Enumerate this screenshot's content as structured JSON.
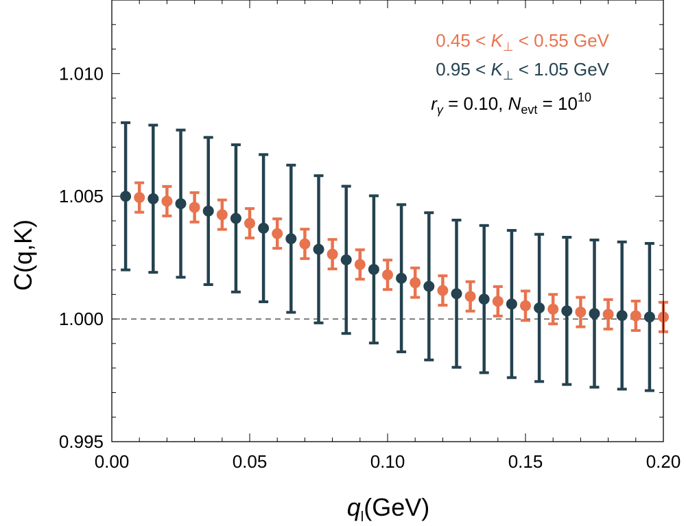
{
  "chart_data": {
    "type": "scatter",
    "xlabel": {
      "main": "q",
      "sub": "l",
      "unit": "(GeV)"
    },
    "ylabel": "C(q,K)",
    "xlim": [
      0.0,
      0.2
    ],
    "ylim": [
      0.995,
      1.013
    ],
    "x_ticks": [
      "0.00",
      "0.05",
      "0.10",
      "0.15",
      "0.20"
    ],
    "y_ticks": [
      "0.995",
      "1.000",
      "1.005",
      "1.010"
    ],
    "reference_line": 1.0,
    "grid": false,
    "legend_position": "top-right",
    "series": [
      {
        "name": "0.45 < K⊥ < 0.55 GeV",
        "label_parts": {
          "pre": "0.45 < ",
          "var": "K",
          "sub": "⊥",
          "post": " < 0.55 GeV"
        },
        "color": "#E8734F",
        "x": [
          0.01,
          0.02,
          0.03,
          0.04,
          0.05,
          0.06,
          0.07,
          0.08,
          0.09,
          0.1,
          0.11,
          0.12,
          0.13,
          0.14,
          0.15,
          0.16,
          0.17,
          0.18,
          0.19,
          0.2
        ],
        "y": [
          1.00495,
          1.0048,
          1.00455,
          1.00425,
          1.0039,
          1.00348,
          1.00306,
          1.00264,
          1.00222,
          1.0018,
          1.00148,
          1.00116,
          1.00092,
          1.00072,
          1.00054,
          1.0004,
          1.00028,
          1.00019,
          1.00013,
          1.00008
        ],
        "err": [
          0.0006,
          0.0006,
          0.0006,
          0.0006,
          0.0006,
          0.0006,
          0.0006,
          0.0006,
          0.0006,
          0.0006,
          0.0006,
          0.0006,
          0.0006,
          0.0006,
          0.0006,
          0.0006,
          0.0006,
          0.0006,
          0.0006,
          0.0006
        ]
      },
      {
        "name": "0.95 < K⊥ < 1.05 GeV",
        "label_parts": {
          "pre": "0.95 < ",
          "var": "K",
          "sub": "⊥",
          "post": " < 1.05 GeV"
        },
        "color": "#24424F",
        "x": [
          0.005,
          0.015,
          0.025,
          0.035,
          0.045,
          0.055,
          0.065,
          0.075,
          0.085,
          0.095,
          0.105,
          0.115,
          0.125,
          0.135,
          0.145,
          0.155,
          0.165,
          0.175,
          0.185,
          0.195
        ],
        "y": [
          1.005,
          1.0049,
          1.0047,
          1.0044,
          1.0041,
          1.0037,
          1.00327,
          1.00284,
          1.00241,
          1.00202,
          1.00166,
          1.00133,
          1.00103,
          1.00081,
          1.00061,
          1.00045,
          1.00033,
          1.00022,
          1.00014,
          1.00008
        ],
        "err": [
          0.003,
          0.003,
          0.003,
          0.003,
          0.003,
          0.003,
          0.003,
          0.003,
          0.003,
          0.003,
          0.003,
          0.003,
          0.003,
          0.003,
          0.003,
          0.003,
          0.003,
          0.003,
          0.003,
          0.003
        ]
      }
    ],
    "annotation": {
      "r_sym": "r",
      "r_sub": "γ",
      "r_val": " = 0.10, ",
      "n_sym": "N",
      "n_sub": "evt",
      "n_val": " = 10",
      "n_exp": "10"
    }
  }
}
